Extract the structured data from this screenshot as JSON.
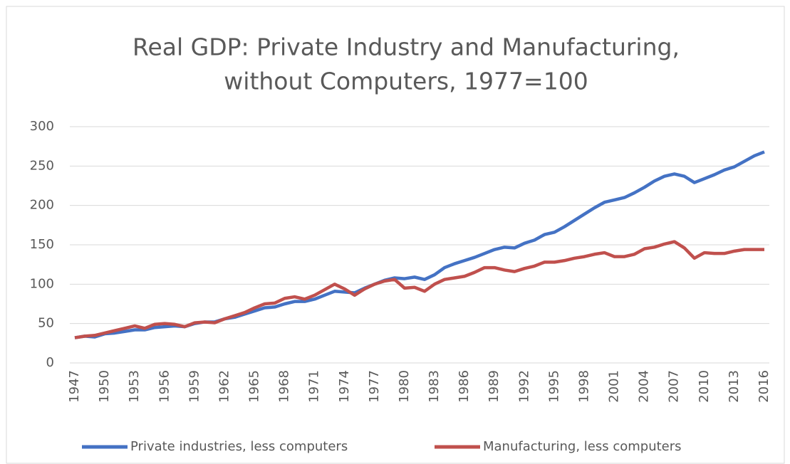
{
  "chart_data": {
    "type": "line",
    "title": [
      "Real GDP: Private Industry and Manufacturing,",
      "without Computers, 1977=100"
    ],
    "categories": [
      "1947",
      null,
      null,
      "1950",
      null,
      null,
      "1953",
      null,
      null,
      "1956",
      null,
      null,
      "1959",
      null,
      null,
      "1962",
      null,
      null,
      "1965",
      null,
      null,
      "1968",
      null,
      null,
      "1971",
      null,
      null,
      "1974",
      null,
      null,
      "1977",
      null,
      null,
      "1980",
      null,
      null,
      "1983",
      null,
      null,
      "1986",
      null,
      null,
      "1989",
      null,
      null,
      "1992",
      null,
      null,
      "1995",
      null,
      null,
      "1998",
      null,
      null,
      "2001",
      null,
      null,
      "2004",
      null,
      null,
      "2007",
      null,
      null,
      "2010",
      null,
      null,
      "2013",
      null,
      null,
      "2016"
    ],
    "series": [
      {
        "name": "Private industries, less computers",
        "color": "#4472c4",
        "values": [
          32,
          34,
          33,
          37,
          38,
          40,
          42,
          42,
          45,
          46,
          47,
          46,
          50,
          52,
          52,
          56,
          58,
          62,
          66,
          70,
          71,
          75,
          78,
          78,
          81,
          86,
          91,
          90,
          89,
          95,
          100,
          105,
          108,
          107,
          109,
          106,
          112,
          121,
          126,
          130,
          134,
          139,
          144,
          147,
          146,
          152,
          156,
          163,
          166,
          173,
          181,
          189,
          197,
          204,
          207,
          210,
          216,
          223,
          231,
          237,
          240,
          237,
          229,
          234,
          239,
          245,
          249,
          256,
          263,
          268
        ]
      },
      {
        "name": "Manufacturing, less computers",
        "color": "#c0504d",
        "values": [
          32,
          34,
          35,
          38,
          41,
          44,
          47,
          44,
          49,
          50,
          49,
          46,
          51,
          52,
          51,
          56,
          60,
          64,
          70,
          75,
          76,
          82,
          84,
          81,
          86,
          93,
          100,
          94,
          86,
          94,
          100,
          104,
          106,
          95,
          96,
          91,
          100,
          106,
          108,
          110,
          115,
          121,
          121,
          118,
          116,
          120,
          123,
          128,
          128,
          130,
          133,
          135,
          138,
          140,
          135,
          135,
          138,
          145,
          147,
          151,
          154,
          146,
          133,
          140,
          139,
          139,
          142,
          144,
          144,
          144
        ]
      }
    ],
    "ylim": [
      0,
      300
    ],
    "yticks": [
      0,
      50,
      100,
      150,
      200,
      250,
      300
    ],
    "grid": true,
    "legend": "bottom"
  }
}
